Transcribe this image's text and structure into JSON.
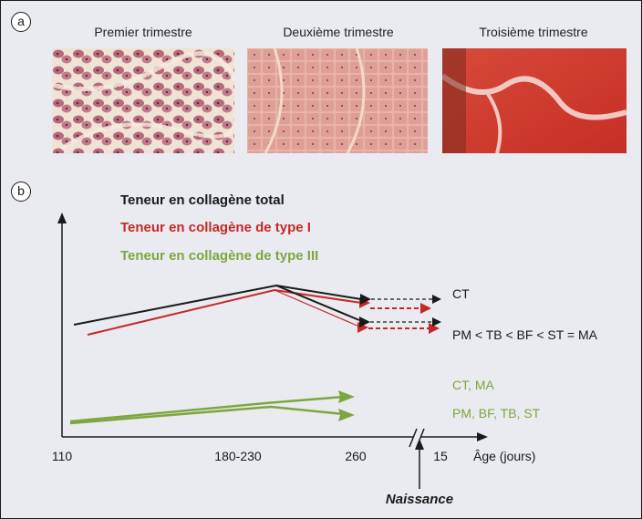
{
  "panel_a": {
    "label": "a",
    "photos": [
      {
        "title": "Premier trimestre"
      },
      {
        "title": "Deuxième trimestre"
      },
      {
        "title": "Troisième trimestre"
      }
    ]
  },
  "panel_b": {
    "label": "b",
    "legend": [
      {
        "text": "Teneur en collagène total",
        "color": "#1a1a1a"
      },
      {
        "text": "Teneur en collagène de type I",
        "color": "#c62828"
      },
      {
        "text": "Teneur en collagène de type III",
        "color": "#7ea63f"
      }
    ],
    "line_labels": {
      "ct_upper": "CT",
      "order_upper": "PM < TB < BF < ST = MA",
      "ct_ma": "CT, MA",
      "others": "PM, BF, TB, ST"
    },
    "x_ticks": [
      "110",
      "180-230",
      "260",
      "15"
    ],
    "x_axis_label": "Âge (jours)",
    "birth_label": "Naissance",
    "colors": {
      "total": "#1a1a1a",
      "type1": "#c62828",
      "type3": "#7ea63f"
    }
  }
}
